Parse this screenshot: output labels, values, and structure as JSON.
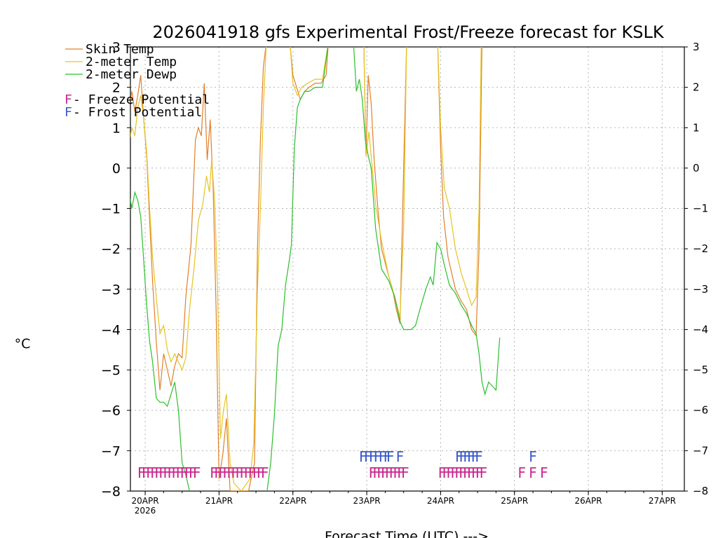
{
  "chart_data": {
    "type": "line",
    "title": "2026041918 gfs Experimental Frost/Freeze forecast for KSLK",
    "xlabel": "Forecast Time (UTC) --->",
    "ylabel": "°C",
    "ylim": [
      -8,
      3
    ],
    "yticks": [
      -8,
      -7,
      -6,
      -5,
      -4,
      -3,
      -2,
      -1,
      0,
      1,
      2,
      3
    ],
    "xlim": [
      -0.2,
      7.3
    ],
    "xticks": [
      {
        "value": 0,
        "label": "20APR",
        "sub": "2026"
      },
      {
        "value": 1,
        "label": "21APR",
        "sub": ""
      },
      {
        "value": 2,
        "label": "22APR",
        "sub": ""
      },
      {
        "value": 3,
        "label": "23APR",
        "sub": ""
      },
      {
        "value": 4,
        "label": "24APR",
        "sub": ""
      },
      {
        "value": 5,
        "label": "25APR",
        "sub": ""
      },
      {
        "value": 6,
        "label": "26APR",
        "sub": ""
      },
      {
        "value": 7,
        "label": "27APR",
        "sub": ""
      }
    ],
    "grid": true,
    "legend": [
      {
        "text": "Skin Temp",
        "color": "#e0802a"
      },
      {
        "text": "2-meter Temp",
        "color": "#e6c424"
      },
      {
        "text": "2-meter Dewp",
        "color": "#2ac02a"
      }
    ],
    "legend_markers": [
      {
        "letter": "F",
        "text": " - Freeze Potential",
        "color": "#c8288c"
      },
      {
        "letter": "F",
        "text": " - Frost Potential",
        "color": "#3c5ac8"
      }
    ],
    "series": [
      {
        "name": "Skin Temp",
        "color": "#e0802a",
        "points": [
          [
            -0.22,
            1.5
          ],
          [
            -0.18,
            1.9
          ],
          [
            -0.14,
            1.4
          ],
          [
            -0.1,
            1.8
          ],
          [
            -0.06,
            2.3
          ],
          [
            -0.02,
            1.2
          ],
          [
            0.02,
            0.3
          ],
          [
            0.06,
            -1.3
          ],
          [
            0.1,
            -2.8
          ],
          [
            0.15,
            -4.3
          ],
          [
            0.2,
            -5.5
          ],
          [
            0.25,
            -4.6
          ],
          [
            0.3,
            -5.0
          ],
          [
            0.35,
            -5.4
          ],
          [
            0.4,
            -4.9
          ],
          [
            0.45,
            -4.6
          ],
          [
            0.5,
            -4.7
          ],
          [
            0.55,
            -3.2
          ],
          [
            0.62,
            -1.9
          ],
          [
            0.68,
            0.7
          ],
          [
            0.72,
            1.0
          ],
          [
            0.76,
            0.8
          ],
          [
            0.8,
            2.1
          ],
          [
            0.84,
            0.2
          ],
          [
            0.88,
            1.2
          ],
          [
            0.92,
            -0.5
          ],
          [
            0.96,
            -3.5
          ],
          [
            1.0,
            -7.7
          ],
          [
            1.05,
            -7.1
          ],
          [
            1.1,
            -6.2
          ],
          [
            1.15,
            -8.0
          ],
          [
            1.2,
            -8.0
          ],
          [
            1.3,
            -8.0
          ],
          [
            1.4,
            -8.0
          ],
          [
            1.48,
            -7.3
          ],
          [
            1.52,
            -2.0
          ],
          [
            1.56,
            0.7
          ],
          [
            1.6,
            2.5
          ],
          [
            1.64,
            3.1
          ],
          null,
          [
            1.96,
            3.1
          ],
          [
            2.0,
            2.3
          ],
          [
            2.05,
            2.0
          ],
          [
            2.1,
            1.7
          ],
          [
            2.16,
            1.9
          ],
          [
            2.22,
            2.0
          ],
          [
            2.3,
            2.1
          ],
          [
            2.38,
            2.1
          ],
          [
            2.45,
            2.3
          ],
          [
            2.48,
            3.1
          ],
          null,
          [
            2.96,
            3.1
          ],
          [
            2.99,
            0.3
          ],
          [
            3.02,
            2.3
          ],
          [
            3.06,
            1.6
          ],
          [
            3.1,
            0.2
          ],
          [
            3.15,
            -1.0
          ],
          [
            3.2,
            -2.0
          ],
          [
            3.3,
            -2.7
          ],
          [
            3.35,
            -3.0
          ],
          [
            3.4,
            -3.5
          ],
          [
            3.45,
            -3.85
          ],
          [
            3.5,
            0.0
          ],
          [
            3.54,
            3.1
          ],
          null,
          [
            3.96,
            3.1
          ],
          [
            4.0,
            0.5
          ],
          [
            4.04,
            -1.2
          ],
          [
            4.1,
            -2.2
          ],
          [
            4.15,
            -2.6
          ],
          [
            4.2,
            -3.0
          ],
          [
            4.28,
            -3.3
          ],
          [
            4.35,
            -3.5
          ],
          [
            4.42,
            -4.0
          ],
          [
            4.48,
            -4.15
          ],
          [
            4.52,
            -2.0
          ],
          [
            4.56,
            3.1
          ]
        ]
      },
      {
        "name": "2-meter Temp",
        "color": "#e6c424",
        "points": [
          [
            -0.22,
            0.6
          ],
          [
            -0.18,
            1.0
          ],
          [
            -0.14,
            0.8
          ],
          [
            -0.1,
            1.5
          ],
          [
            -0.06,
            1.8
          ],
          [
            -0.02,
            1.2
          ],
          [
            0.02,
            0.4
          ],
          [
            0.06,
            -1.0
          ],
          [
            0.1,
            -2.2
          ],
          [
            0.15,
            -3.2
          ],
          [
            0.2,
            -4.1
          ],
          [
            0.25,
            -3.9
          ],
          [
            0.3,
            -4.5
          ],
          [
            0.35,
            -4.8
          ],
          [
            0.4,
            -4.6
          ],
          [
            0.45,
            -4.8
          ],
          [
            0.5,
            -5.0
          ],
          [
            0.55,
            -4.7
          ],
          [
            0.6,
            -3.5
          ],
          [
            0.66,
            -2.5
          ],
          [
            0.72,
            -1.3
          ],
          [
            0.78,
            -0.9
          ],
          [
            0.83,
            -0.2
          ],
          [
            0.87,
            -0.6
          ],
          [
            0.9,
            0.2
          ],
          [
            0.94,
            -0.8
          ],
          [
            0.98,
            -3.0
          ],
          [
            1.02,
            -6.7
          ],
          [
            1.06,
            -6.0
          ],
          [
            1.1,
            -5.6
          ],
          [
            1.15,
            -7.3
          ],
          [
            1.2,
            -7.8
          ],
          [
            1.3,
            -8.0
          ],
          [
            1.42,
            -7.7
          ],
          [
            1.47,
            -6.8
          ],
          [
            1.52,
            -3.0
          ],
          [
            1.56,
            -1.0
          ],
          [
            1.6,
            1.5
          ],
          [
            1.64,
            3.1
          ],
          null,
          [
            1.96,
            3.1
          ],
          [
            2.0,
            2.1
          ],
          [
            2.06,
            1.8
          ],
          [
            2.12,
            2.0
          ],
          [
            2.2,
            2.1
          ],
          [
            2.3,
            2.2
          ],
          [
            2.4,
            2.2
          ],
          [
            2.48,
            3.1
          ],
          null,
          [
            2.96,
            3.1
          ],
          [
            2.99,
            0.3
          ],
          [
            3.03,
            0.9
          ],
          [
            3.06,
            0.3
          ],
          [
            3.12,
            -0.9
          ],
          [
            3.2,
            -1.8
          ],
          [
            3.3,
            -2.7
          ],
          [
            3.38,
            -3.2
          ],
          [
            3.45,
            -3.7
          ],
          [
            3.5,
            -1.5
          ],
          [
            3.54,
            3.1
          ],
          null,
          [
            3.96,
            3.1
          ],
          [
            4.0,
            1.0
          ],
          [
            4.05,
            -0.5
          ],
          [
            4.12,
            -1.0
          ],
          [
            4.2,
            -2.0
          ],
          [
            4.28,
            -2.6
          ],
          [
            4.35,
            -3.0
          ],
          [
            4.42,
            -3.4
          ],
          [
            4.48,
            -3.2
          ],
          [
            4.52,
            -1.0
          ],
          [
            4.55,
            3.1
          ]
        ]
      },
      {
        "name": "2-meter Dewp",
        "color": "#2ac02a",
        "points": [
          [
            -0.22,
            -0.6
          ],
          [
            -0.18,
            -1.0
          ],
          [
            -0.14,
            -0.6
          ],
          [
            -0.1,
            -0.8
          ],
          [
            -0.06,
            -1.2
          ],
          [
            -0.02,
            -2.3
          ],
          [
            0.02,
            -3.4
          ],
          [
            0.06,
            -4.3
          ],
          [
            0.1,
            -4.8
          ],
          [
            0.15,
            -5.7
          ],
          [
            0.2,
            -5.8
          ],
          [
            0.25,
            -5.8
          ],
          [
            0.3,
            -5.9
          ],
          [
            0.35,
            -5.6
          ],
          [
            0.4,
            -5.3
          ],
          [
            0.45,
            -6.0
          ],
          [
            0.5,
            -7.3
          ],
          [
            0.55,
            -7.6
          ],
          [
            0.6,
            -8.0
          ],
          null,
          [
            1.65,
            -8.0
          ],
          [
            1.7,
            -7.3
          ],
          [
            1.75,
            -6.1
          ],
          [
            1.8,
            -4.4
          ],
          [
            1.85,
            -4.0
          ],
          [
            1.9,
            -2.9
          ],
          [
            1.95,
            -2.3
          ],
          [
            1.98,
            -1.9
          ],
          [
            2.02,
            0.5
          ],
          [
            2.06,
            1.5
          ],
          [
            2.1,
            1.7
          ],
          [
            2.16,
            1.9
          ],
          [
            2.22,
            1.9
          ],
          [
            2.3,
            2.0
          ],
          [
            2.4,
            2.0
          ],
          [
            2.48,
            3.1
          ],
          null,
          [
            2.82,
            3.1
          ],
          [
            2.86,
            1.9
          ],
          [
            2.9,
            2.2
          ],
          [
            2.94,
            1.7
          ],
          [
            2.98,
            0.7
          ],
          [
            3.02,
            0.3
          ],
          [
            3.06,
            0.0
          ],
          [
            3.12,
            -1.5
          ],
          [
            3.2,
            -2.5
          ],
          [
            3.3,
            -2.8
          ],
          [
            3.38,
            -3.2
          ],
          [
            3.45,
            -3.8
          ],
          [
            3.5,
            -4.0
          ],
          [
            3.6,
            -4.0
          ],
          [
            3.66,
            -3.9
          ],
          [
            3.72,
            -3.5
          ],
          [
            3.8,
            -3.0
          ],
          [
            3.86,
            -2.7
          ],
          [
            3.9,
            -2.9
          ],
          [
            3.95,
            -1.85
          ],
          [
            4.0,
            -2.0
          ],
          [
            4.05,
            -2.4
          ],
          [
            4.12,
            -2.9
          ],
          [
            4.2,
            -3.1
          ],
          [
            4.28,
            -3.4
          ],
          [
            4.35,
            -3.6
          ],
          [
            4.42,
            -3.9
          ],
          [
            4.48,
            -4.1
          ],
          [
            4.52,
            -4.6
          ],
          [
            4.56,
            -5.3
          ],
          [
            4.6,
            -5.6
          ],
          [
            4.65,
            -5.3
          ],
          [
            4.7,
            -5.4
          ],
          [
            4.75,
            -5.5
          ],
          [
            4.8,
            -4.2
          ]
        ]
      }
    ],
    "freeze_rows": [
      {
        "x_start": -0.05,
        "x_end": 0.7,
        "count": 14,
        "label": "FFFFFFFFFFFFFF"
      },
      {
        "x_start": 0.93,
        "x_end": 1.62,
        "count": 13,
        "label": "FFFFFFFFFFFFF"
      },
      {
        "x_start": 3.08,
        "x_end": 3.52,
        "count": 9,
        "label": "FFFFFFFFF"
      },
      {
        "x_start": 4.02,
        "x_end": 4.58,
        "count": 11,
        "label": "FFFFFFFFFFF"
      },
      {
        "x_start": 5.1,
        "x_end": 5.4,
        "count": 3,
        "label": "FFF"
      }
    ],
    "frost_rows": [
      {
        "x_start": 2.95,
        "x_end": 3.28,
        "count": 6,
        "label": "FFFFFF"
      },
      {
        "x_start": 3.32,
        "x_end": 3.45,
        "count": 2,
        "label": "FF"
      },
      {
        "x_start": 4.25,
        "x_end": 4.52,
        "count": 6,
        "label": "FFFFFF"
      },
      {
        "x_start": 5.25,
        "x_end": 5.3,
        "count": 1,
        "label": "F"
      }
    ]
  }
}
